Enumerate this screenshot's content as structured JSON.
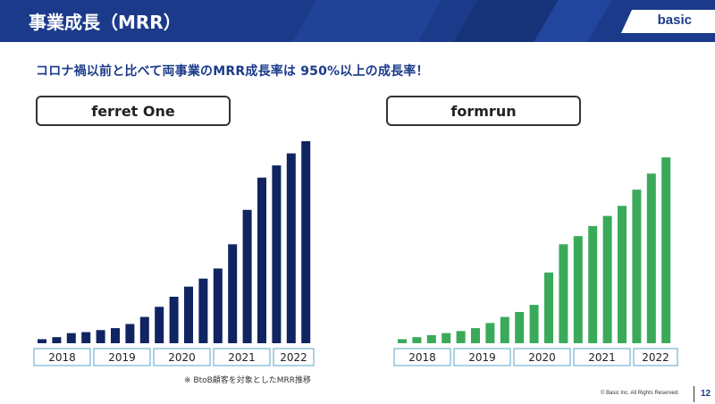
{
  "header": {
    "title": "事業成長（MRR）",
    "brand": "basic"
  },
  "headline": "コロナ禍以前と比べて両事業のMRR成長率は 950%以上の成長率！",
  "note": "※ BtoB顧客を対象としたMRR推移",
  "footer": {
    "copyright": "© Basic Inc. All Rights Reserved.",
    "page_number": "12"
  },
  "colors": {
    "brand_navy": "#1b3a8a",
    "bar_navy": "#0f2461",
    "bar_green": "#3aaa5a",
    "year_box_border": "#5aa6c8"
  },
  "chart_data": [
    {
      "type": "bar",
      "title": "ferret One",
      "year_groups": [
        {
          "label": "2018",
          "count": 4
        },
        {
          "label": "2019",
          "count": 4
        },
        {
          "label": "2020",
          "count": 4
        },
        {
          "label": "2021",
          "count": 4
        },
        {
          "label": "2022",
          "count": 3
        }
      ],
      "values": [
        2,
        3,
        5,
        5.5,
        6.5,
        7.5,
        9.5,
        13,
        18,
        23,
        28,
        32,
        37,
        49,
        66,
        82,
        88,
        94,
        100
      ],
      "ylim": [
        0,
        100
      ],
      "grid": false
    },
    {
      "type": "bar",
      "title": "formrun",
      "year_groups": [
        {
          "label": "2018",
          "count": 4
        },
        {
          "label": "2019",
          "count": 4
        },
        {
          "label": "2020",
          "count": 4
        },
        {
          "label": "2021",
          "count": 4
        },
        {
          "label": "2022",
          "count": 3
        }
      ],
      "values": [
        2,
        3,
        4,
        5,
        6,
        7.5,
        10,
        13,
        15.5,
        19,
        35,
        49,
        53,
        58,
        63,
        68,
        76,
        84,
        92
      ],
      "ylim": [
        0,
        100
      ],
      "grid": false
    }
  ]
}
